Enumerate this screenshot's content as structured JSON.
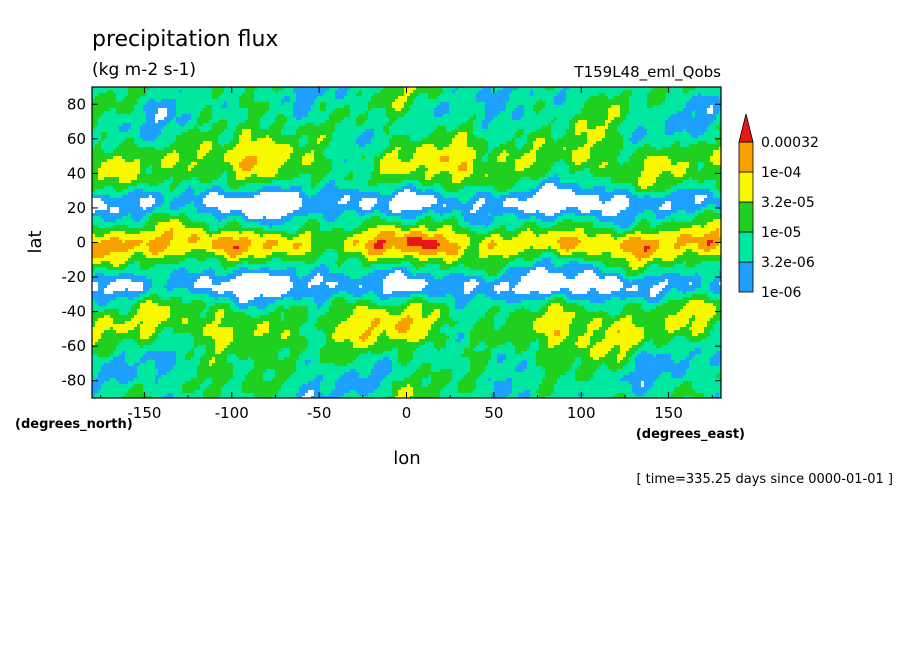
{
  "chart_data": {
    "type": "heatmap",
    "title": "precipitation flux",
    "units": "(kg m-2 s-1)",
    "run_label": "T159L48_eml_Qobs",
    "xlabel": "lon",
    "ylabel": "lat",
    "x_units": "(degrees_east)",
    "y_units": "(degrees_north)",
    "time_label": "[ time=335.25 days since 0000-01-01 ]",
    "xlim": [
      -180,
      180
    ],
    "ylim": [
      -90,
      90
    ],
    "x_ticks": [
      -150,
      -100,
      -50,
      0,
      50,
      100,
      150
    ],
    "y_ticks": [
      80,
      60,
      40,
      20,
      0,
      -20,
      -40,
      -60,
      -80
    ],
    "colorbar": {
      "levels": [
        "1e-06",
        "3.2e-06",
        "1e-05",
        "3.2e-05",
        "1e-04",
        "0.00032"
      ],
      "colors": [
        "#ffffff",
        "#1ea0ff",
        "#00e8a0",
        "#20d020",
        "#f8f800",
        "#f8a000",
        "#e81818"
      ],
      "extend": "max"
    },
    "grid": false,
    "legend": "colorbar-right"
  }
}
